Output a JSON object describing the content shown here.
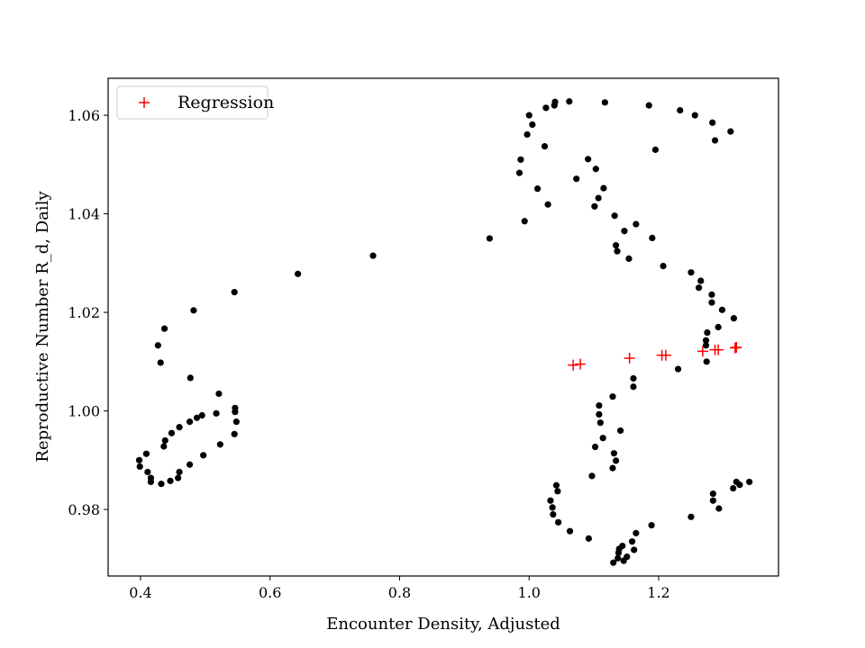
{
  "chart_data": {
    "type": "scatter",
    "title": "",
    "xlabel": "Encounter Density, Adjusted",
    "ylabel": "Reproductive Number R_d, Daily",
    "xlim": [
      0.35,
      1.385
    ],
    "ylim": [
      0.9665,
      1.0675
    ],
    "x_ticks": [
      0.4,
      0.6,
      0.8,
      1.0,
      1.2
    ],
    "x_tick_labels": [
      "0.4",
      "0.6",
      "0.8",
      "1.0",
      "1.2"
    ],
    "y_ticks": [
      0.98,
      1.0,
      1.02,
      1.04,
      1.06
    ],
    "y_tick_labels": [
      "0.98",
      "1.00",
      "1.02",
      "1.04",
      "1.06"
    ],
    "grid": false,
    "legend": {
      "placement": "top-left",
      "entries": [
        {
          "label": "Regression",
          "marker": "+",
          "color": "#ff0000"
        }
      ]
    },
    "series": [
      {
        "marker": "dot",
        "color": "#000000",
        "points": [
          [
            0.398,
            0.99
          ],
          [
            0.399,
            0.9887
          ],
          [
            0.409,
            0.9913
          ],
          [
            0.411,
            0.9876
          ],
          [
            0.416,
            0.9864
          ],
          [
            0.416,
            0.9856
          ],
          [
            0.432,
            0.9852
          ],
          [
            0.446,
            0.9858
          ],
          [
            0.458,
            0.9864
          ],
          [
            0.46,
            0.9876
          ],
          [
            0.476,
            0.9891
          ],
          [
            0.436,
            0.9928
          ],
          [
            0.438,
            0.994
          ],
          [
            0.448,
            0.9955
          ],
          [
            0.46,
            0.9967
          ],
          [
            0.476,
            0.9978
          ],
          [
            0.487,
            0.9986
          ],
          [
            0.495,
            0.9991
          ],
          [
            0.497,
            0.991
          ],
          [
            0.517,
            0.9995
          ],
          [
            0.523,
            0.9932
          ],
          [
            0.521,
            1.0035
          ],
          [
            0.545,
            0.9953
          ],
          [
            0.546,
            0.9998
          ],
          [
            0.546,
            1.0006
          ],
          [
            0.548,
            0.9978
          ],
          [
            0.427,
            1.0133
          ],
          [
            0.431,
            1.0098
          ],
          [
            0.437,
            1.0167
          ],
          [
            0.477,
            1.0067
          ],
          [
            0.482,
            1.0204
          ],
          [
            0.545,
            1.0241
          ],
          [
            0.643,
            1.0278
          ],
          [
            0.759,
            1.0315
          ],
          [
            0.939,
            1.035
          ],
          [
            0.985,
            1.0483
          ],
          [
            0.987,
            1.051
          ],
          [
            0.993,
            1.0385
          ],
          [
            0.997,
            1.0561
          ],
          [
            1.0,
            1.06
          ],
          [
            1.005,
            1.0581
          ],
          [
            1.013,
            1.0451
          ],
          [
            1.024,
            1.0537
          ],
          [
            1.026,
            1.0615
          ],
          [
            1.029,
            1.0419
          ],
          [
            1.039,
            1.062
          ],
          [
            1.04,
            1.0627
          ],
          [
            1.062,
            1.0628
          ],
          [
            1.073,
            1.0471
          ],
          [
            1.091,
            1.0511
          ],
          [
            1.101,
            1.0415
          ],
          [
            1.103,
            1.0491
          ],
          [
            1.107,
            1.0432
          ],
          [
            1.115,
            1.0452
          ],
          [
            1.117,
            1.0626
          ],
          [
            1.132,
            1.0396
          ],
          [
            1.134,
            1.0336
          ],
          [
            1.136,
            1.0324
          ],
          [
            1.147,
            1.0365
          ],
          [
            1.154,
            1.0309
          ],
          [
            1.165,
            1.0379
          ],
          [
            1.185,
            1.062
          ],
          [
            1.19,
            1.0351
          ],
          [
            1.195,
            1.053
          ],
          [
            1.207,
            1.0294
          ],
          [
            1.233,
            1.061
          ],
          [
            1.25,
            1.0281
          ],
          [
            1.256,
            1.06
          ],
          [
            1.262,
            1.025
          ],
          [
            1.265,
            1.0264
          ],
          [
            1.273,
            1.0133
          ],
          [
            1.273,
            1.0143
          ],
          [
            1.274,
            1.01
          ],
          [
            1.275,
            1.0159
          ],
          [
            1.282,
            1.0236
          ],
          [
            1.282,
            1.022
          ],
          [
            1.283,
            1.0585
          ],
          [
            1.287,
            1.0549
          ],
          [
            1.292,
            1.017
          ],
          [
            1.298,
            1.0205
          ],
          [
            1.311,
            1.0567
          ],
          [
            1.316,
            1.0188
          ],
          [
            1.23,
            1.0085
          ],
          [
            1.042,
            0.9849
          ],
          [
            1.044,
            0.9837
          ],
          [
            1.033,
            0.9818
          ],
          [
            1.036,
            0.9804
          ],
          [
            1.037,
            0.979
          ],
          [
            1.045,
            0.9774
          ],
          [
            1.063,
            0.9756
          ],
          [
            1.092,
            0.9741
          ],
          [
            1.097,
            0.9868
          ],
          [
            1.102,
            0.9927
          ],
          [
            1.108,
            1.0011
          ],
          [
            1.108,
            0.9993
          ],
          [
            1.11,
            0.9976
          ],
          [
            1.114,
            0.9945
          ],
          [
            1.129,
            1.0029
          ],
          [
            1.129,
            0.9884
          ],
          [
            1.131,
            0.9914
          ],
          [
            1.134,
            0.9899
          ],
          [
            1.141,
            0.996
          ],
          [
            1.13,
            0.9692
          ],
          [
            1.137,
            0.9701
          ],
          [
            1.138,
            0.9712
          ],
          [
            1.139,
            0.972
          ],
          [
            1.144,
            0.9726
          ],
          [
            1.146,
            0.9696
          ],
          [
            1.151,
            0.9704
          ],
          [
            1.159,
            0.9735
          ],
          [
            1.162,
            0.9718
          ],
          [
            1.165,
            0.9752
          ],
          [
            1.161,
            1.0049
          ],
          [
            1.161,
            1.0066
          ],
          [
            1.189,
            0.9768
          ],
          [
            1.25,
            0.9785
          ],
          [
            1.284,
            0.9832
          ],
          [
            1.284,
            0.9818
          ],
          [
            1.293,
            0.9802
          ],
          [
            1.315,
            0.9843
          ],
          [
            1.32,
            0.9856
          ],
          [
            1.325,
            0.985
          ],
          [
            1.34,
            0.9856
          ]
        ]
      },
      {
        "name": "Regression",
        "marker": "+",
        "color": "#ff0000",
        "points": [
          [
            1.068,
            1.0093
          ],
          [
            1.079,
            1.0095
          ],
          [
            1.155,
            1.0107
          ],
          [
            1.205,
            1.0113
          ],
          [
            1.211,
            1.0113
          ],
          [
            1.268,
            1.0121
          ],
          [
            1.287,
            1.0124
          ],
          [
            1.292,
            1.0124
          ],
          [
            1.318,
            1.0128
          ],
          [
            1.32,
            1.0129
          ]
        ]
      }
    ]
  }
}
